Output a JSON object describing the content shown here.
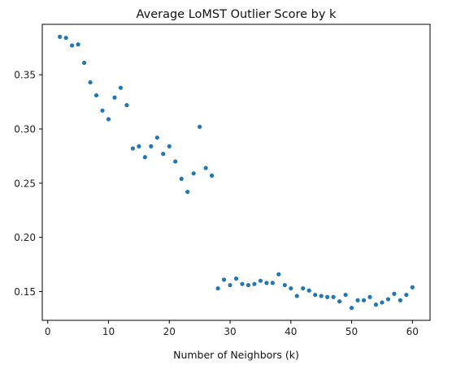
{
  "chart_data": {
    "type": "scatter",
    "title": "Average LoMST Outlier Score by k",
    "xlabel": "Number of Neighbors (k)",
    "ylabel": "",
    "xlim": [
      -0.9,
      62.9
    ],
    "ylim": [
      0.1235,
      0.3965
    ],
    "x_ticks": [
      0,
      10,
      20,
      30,
      40,
      50,
      60
    ],
    "y_ticks": [
      0.15,
      0.2,
      0.25,
      0.3,
      0.35
    ],
    "x_tick_labels": [
      "0",
      "10",
      "20",
      "30",
      "40",
      "50",
      "60"
    ],
    "y_tick_labels": [
      "0.15",
      "0.20",
      "0.25",
      "0.30",
      "0.35"
    ],
    "grid": false,
    "legend": "none",
    "marker_color": "#1f77b4",
    "series": [
      {
        "x": [
          2,
          3,
          4,
          5,
          6,
          7,
          8,
          9,
          10,
          11,
          12,
          13,
          14,
          15,
          16,
          17,
          18,
          19,
          20,
          21,
          22,
          23,
          24,
          25,
          26,
          27,
          28,
          29,
          30,
          31,
          32,
          33,
          34,
          35,
          36,
          37,
          38,
          39,
          40,
          41,
          42,
          43,
          44,
          45,
          46,
          47,
          48,
          49,
          50,
          51,
          52,
          53,
          54,
          55,
          56,
          57,
          58,
          59,
          60
        ],
        "y": [
          0.385,
          0.384,
          0.377,
          0.378,
          0.361,
          0.343,
          0.331,
          0.317,
          0.309,
          0.329,
          0.338,
          0.322,
          0.282,
          0.284,
          0.274,
          0.284,
          0.292,
          0.277,
          0.284,
          0.27,
          0.254,
          0.242,
          0.259,
          0.302,
          0.264,
          0.257,
          0.153,
          0.161,
          0.156,
          0.162,
          0.157,
          0.156,
          0.157,
          0.16,
          0.158,
          0.158,
          0.166,
          0.156,
          0.153,
          0.146,
          0.153,
          0.151,
          0.147,
          0.146,
          0.145,
          0.145,
          0.141,
          0.147,
          0.135,
          0.142,
          0.142,
          0.145,
          0.138,
          0.14,
          0.143,
          0.148,
          0.142,
          0.147,
          0.154
        ]
      }
    ]
  }
}
